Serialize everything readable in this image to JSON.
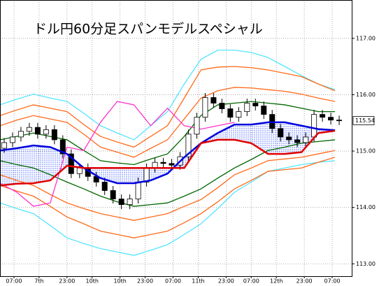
{
  "chart_data": {
    "type": "candlestick",
    "title": "ドル円60分足スパンモデルスペシャル",
    "xlim": [
      0,
      126
    ],
    "xticks": [
      {
        "value": 5,
        "label": "07:00"
      },
      {
        "value": 14,
        "label": "7th"
      },
      {
        "value": 24,
        "label": "23:00"
      },
      {
        "value": 33,
        "label": "10th"
      },
      {
        "value": 43,
        "label": "10th"
      },
      {
        "value": 52,
        "label": "23:00"
      },
      {
        "value": 62,
        "label": "07:00"
      },
      {
        "value": 71,
        "label": "11th"
      },
      {
        "value": 81,
        "label": "23:00"
      },
      {
        "value": 90,
        "label": "07:00"
      },
      {
        "value": 99,
        "label": "12th"
      },
      {
        "value": 109,
        "label": "23:00"
      },
      {
        "value": 119,
        "label": "07:00"
      }
    ],
    "ylim": [
      112.78,
      117.68
    ],
    "yticks": [
      {
        "value": 113,
        "label": "113.00"
      },
      {
        "value": 114,
        "label": "114.00"
      },
      {
        "value": 115,
        "label": "115.00"
      },
      {
        "value": 116,
        "label": "116.00"
      },
      {
        "value": 117,
        "label": "117.00"
      }
    ],
    "grid": true,
    "last_price": 115.54,
    "candles": {
      "up_color": "#ffffff",
      "down_color": "#000000",
      "x": [
        1.5,
        4.5,
        7.5,
        10.5,
        13.5,
        16.5,
        19.5,
        22.5,
        25.5,
        28.5,
        31.5,
        34.5,
        37.5,
        40.5,
        43.5,
        46.5,
        49.5,
        52.5,
        55.5,
        58.5,
        61.5,
        64.5,
        67.5,
        70.5,
        73.5,
        76.5,
        79.5,
        82.5,
        85.5,
        88.5,
        91.5,
        94.5,
        97.5,
        100.5,
        103.5,
        106.5,
        109.5,
        112.5,
        115.5,
        118.5,
        121.5
      ],
      "open": [
        115.05,
        115.15,
        115.25,
        115.35,
        115.42,
        115.3,
        115.38,
        115.2,
        114.95,
        114.6,
        114.7,
        114.55,
        114.45,
        114.3,
        114.15,
        114.05,
        114.15,
        114.45,
        114.7,
        114.8,
        114.78,
        114.75,
        114.9,
        115.3,
        115.6,
        115.95,
        115.85,
        115.75,
        115.6,
        115.7,
        115.85,
        115.8,
        115.65,
        115.4,
        115.25,
        115.2,
        115.15,
        115.25,
        115.65,
        115.6,
        115.55
      ],
      "high": [
        115.23,
        115.33,
        115.43,
        115.5,
        115.5,
        115.46,
        115.46,
        115.28,
        115.03,
        114.78,
        114.78,
        114.63,
        114.53,
        114.38,
        114.23,
        114.23,
        114.53,
        114.78,
        114.88,
        114.88,
        114.86,
        114.98,
        115.38,
        115.68,
        116.03,
        116.03,
        115.93,
        115.83,
        115.78,
        115.93,
        115.93,
        115.88,
        115.73,
        115.48,
        115.33,
        115.28,
        115.33,
        115.73,
        115.73,
        115.68,
        115.63
      ],
      "low": [
        114.97,
        115.07,
        115.17,
        115.27,
        115.22,
        115.22,
        115.12,
        114.87,
        114.52,
        114.52,
        114.47,
        114.37,
        114.22,
        114.07,
        113.97,
        113.97,
        114.07,
        114.37,
        114.62,
        114.7,
        114.67,
        114.67,
        114.82,
        115.22,
        115.52,
        115.77,
        115.67,
        115.52,
        115.52,
        115.62,
        115.72,
        115.57,
        115.32,
        115.17,
        115.12,
        115.07,
        115.07,
        115.17,
        115.52,
        115.47,
        115.46
      ],
      "close": [
        115.15,
        115.25,
        115.35,
        115.42,
        115.3,
        115.38,
        115.2,
        114.95,
        114.6,
        114.7,
        114.55,
        114.45,
        114.3,
        114.15,
        114.05,
        114.15,
        114.45,
        114.7,
        114.8,
        114.78,
        114.75,
        114.9,
        115.3,
        115.6,
        115.95,
        115.85,
        115.75,
        115.6,
        115.7,
        115.85,
        115.8,
        115.65,
        115.4,
        115.25,
        115.2,
        115.15,
        115.25,
        115.65,
        115.6,
        115.55,
        115.54
      ]
    },
    "x": [
      0,
      6,
      12,
      18,
      24,
      30,
      36,
      42,
      48,
      54,
      60,
      66,
      72,
      78,
      84,
      90,
      96,
      102,
      108,
      114,
      120
    ],
    "cloud_color": "#3355ff",
    "series": [
      {
        "color": "#55e5ff",
        "values": [
          115.82,
          115.92,
          116.01,
          115.94,
          115.88,
          115.67,
          115.45,
          115.32,
          115.2,
          115.45,
          115.7,
          116.19,
          116.63,
          116.79,
          116.79,
          116.75,
          116.66,
          116.5,
          116.34,
          116.19,
          116.09
        ]
      },
      {
        "color": "#55e5ff",
        "values": [
          114.08,
          113.98,
          113.89,
          113.68,
          113.46,
          113.36,
          113.27,
          113.21,
          113.15,
          113.24,
          113.34,
          113.52,
          113.71,
          113.98,
          114.27,
          114.45,
          114.64,
          114.7,
          114.76,
          114.8,
          114.83
        ]
      },
      {
        "color": "#ff6a1a",
        "values": [
          115.63,
          115.73,
          115.82,
          115.76,
          115.7,
          115.47,
          115.26,
          115.16,
          115.07,
          115.26,
          115.45,
          115.94,
          116.44,
          116.49,
          116.5,
          116.48,
          116.44,
          116.38,
          116.32,
          116.19,
          116.07
        ]
      },
      {
        "color": "#ff6a1a",
        "values": [
          114.39,
          114.29,
          114.2,
          114.02,
          113.83,
          113.71,
          113.58,
          113.52,
          113.46,
          113.52,
          113.58,
          113.73,
          113.89,
          114.1,
          114.33,
          114.48,
          114.64,
          114.67,
          114.7,
          114.8,
          114.89
        ]
      },
      {
        "color": "#ff6a1a",
        "values": [
          115.45,
          115.55,
          115.63,
          115.57,
          115.51,
          115.3,
          115.07,
          114.98,
          114.89,
          115.05,
          115.2,
          115.57,
          115.94,
          116.07,
          116.13,
          116.12,
          116.09,
          116.06,
          116.01,
          115.94,
          115.88
        ]
      },
      {
        "color": "#ff6a1a",
        "values": [
          114.58,
          114.48,
          114.39,
          114.23,
          114.08,
          113.98,
          113.89,
          113.83,
          113.77,
          113.83,
          113.89,
          114.02,
          114.14,
          114.35,
          114.58,
          114.7,
          114.83,
          114.86,
          114.89,
          114.95,
          115.01
        ]
      },
      {
        "color": "#006600",
        "values": [
          115.2,
          115.26,
          115.32,
          115.26,
          115.2,
          115.01,
          114.83,
          114.79,
          114.76,
          114.86,
          114.95,
          115.26,
          115.63,
          115.82,
          115.85,
          115.88,
          115.85,
          115.82,
          115.76,
          115.7,
          115.7
        ]
      },
      {
        "color": "#006600",
        "values": [
          114.83,
          114.76,
          114.7,
          114.58,
          114.45,
          114.33,
          114.2,
          114.1,
          114.02,
          114.05,
          114.08,
          114.2,
          114.33,
          114.52,
          114.7,
          114.85,
          115.01,
          115.07,
          115.14,
          115.17,
          115.2
        ]
      },
      {
        "color": "#ff33cc",
        "values": [
          114.43,
          114.27,
          114.02,
          114.08,
          115.07,
          115.01,
          115.51,
          115.88,
          115.82,
          115.45,
          115.76,
          115.45,
          115.39,
          115.45,
          115.51,
          null,
          null,
          null,
          null,
          null,
          null
        ]
      },
      {
        "color": "#0000dd",
        "values": [
          115.01,
          115.05,
          115.1,
          115.07,
          114.95,
          114.7,
          114.52,
          114.43,
          114.43,
          114.48,
          114.6,
          114.89,
          115.14,
          115.32,
          115.47,
          115.47,
          115.51,
          115.51,
          115.45,
          115.39,
          115.37
        ]
      },
      {
        "color": "#e00000",
        "values": [
          114.39,
          114.42,
          114.43,
          114.48,
          114.74,
          114.7,
          114.7,
          114.7,
          114.7,
          114.7,
          114.7,
          114.7,
          115.14,
          115.2,
          115.2,
          115.14,
          114.95,
          114.95,
          114.98,
          115.32,
          115.36
        ]
      }
    ]
  }
}
